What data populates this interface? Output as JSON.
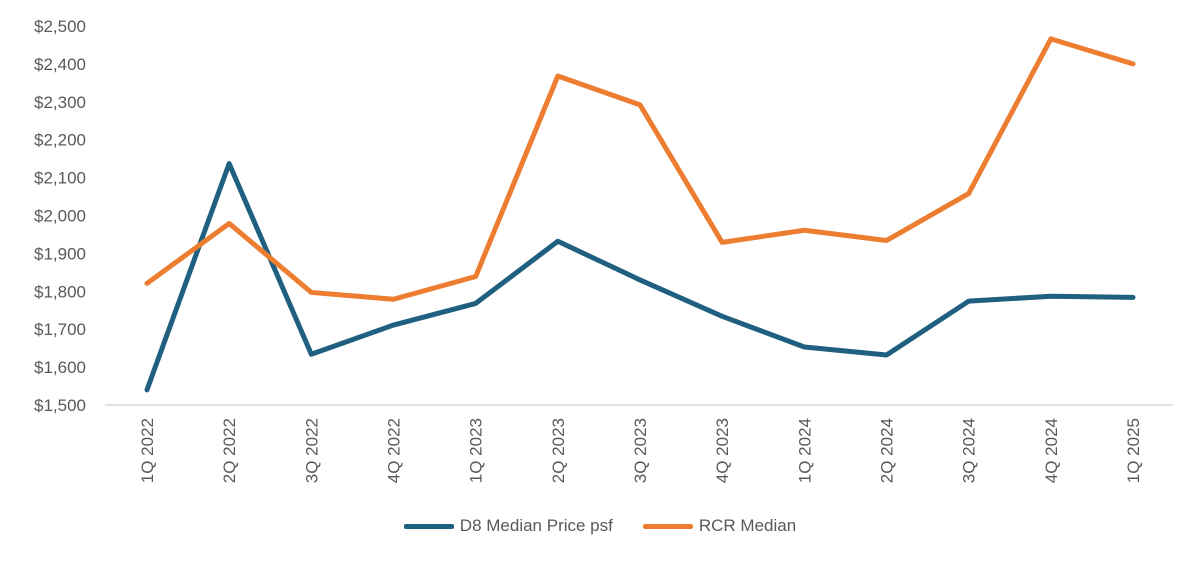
{
  "chart_data": {
    "type": "line",
    "categories": [
      "1Q 2022",
      "2Q 2022",
      "3Q 2022",
      "4Q 2022",
      "1Q 2023",
      "2Q 2023",
      "3Q 2023",
      "4Q 2023",
      "1Q 2024",
      "2Q 2024",
      "3Q 2024",
      "4Q 2024",
      "1Q 2025"
    ],
    "series": [
      {
        "name": "D8 Median Price psf",
        "color": "#1f5f80",
        "values": [
          1540,
          2137,
          1634,
          1711,
          1768,
          1932,
          1830,
          1734,
          1653,
          1632,
          1774,
          1787,
          1784
        ]
      },
      {
        "name": "RCR Median",
        "color": "#ed7d31",
        "values": [
          1821,
          1979,
          1797,
          1779,
          1839,
          2368,
          2292,
          1929,
          1961,
          1934,
          2058,
          2466,
          2400
        ]
      }
    ],
    "yticks": [
      "$1,500",
      "$1,600",
      "$1,700",
      "$1,800",
      "$1,900",
      "$2,000",
      "$2,100",
      "$2,200",
      "$2,300",
      "$2,400",
      "$2,500"
    ],
    "ylim": [
      1500,
      2500
    ],
    "grid": false,
    "legend": "bottom",
    "title": "",
    "xlabel": "",
    "ylabel": ""
  }
}
